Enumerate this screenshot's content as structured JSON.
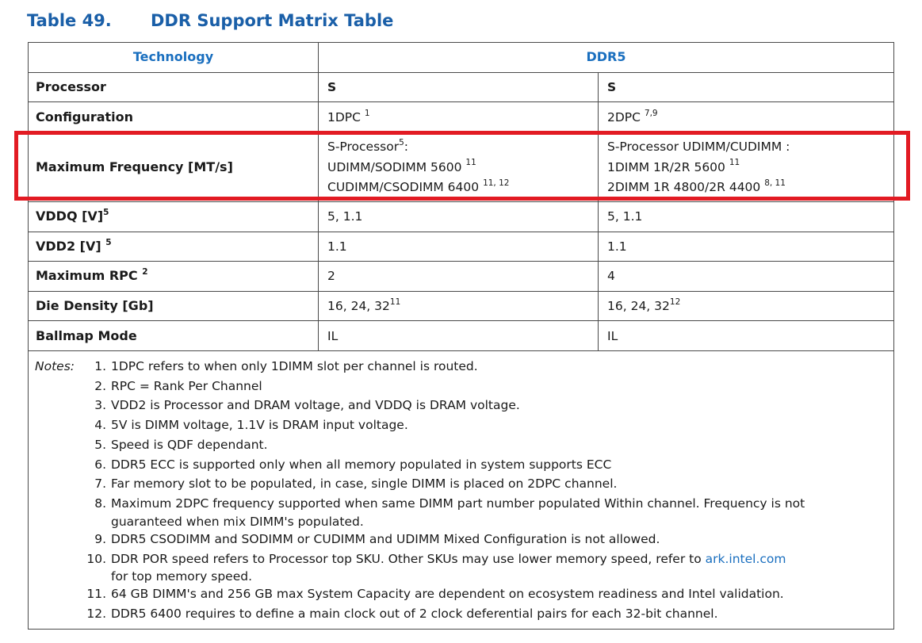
{
  "title": {
    "number": "Table 49.",
    "text": "DDR Support Matrix Table"
  },
  "header": {
    "technology": "Technology",
    "ddr": "DDR5"
  },
  "rows": {
    "processor": {
      "label": "Processor",
      "c1": "S",
      "c2": "S"
    },
    "configuration": {
      "label": "Configuration",
      "c1": "1DPC",
      "c1_sup": "1",
      "c2": "2DPC",
      "c2_sup": "7,9"
    },
    "max_freq": {
      "label": "Maximum Frequency [MT/s]",
      "c1": [
        {
          "text": "S-Processor",
          "sup": "5",
          "after": ":"
        },
        {
          "text": "UDIMM/SODIMM 5600 ",
          "sup": "11"
        },
        {
          "text": "CUDIMM/CSODIMM 6400 ",
          "sup": "11, 12"
        }
      ],
      "c2": [
        {
          "text": "S-Processor UDIMM/CUDIMM :",
          "sup": ""
        },
        {
          "text": "1DIMM 1R/2R 5600 ",
          "sup": "11"
        },
        {
          "text": "2DIMM 1R 4800/2R 4400 ",
          "sup": "8, 11"
        }
      ]
    },
    "vddq": {
      "label": "VDDQ [V]",
      "label_sup": "5",
      "c1": "5, 1.1",
      "c2": "5, 1.1"
    },
    "vdd2": {
      "label": "VDD2 [V] ",
      "label_sup": "5",
      "c1": "1.1",
      "c2": "1.1"
    },
    "max_rpc": {
      "label": "Maximum RPC ",
      "label_sup": "2",
      "c1": "2",
      "c2": "4"
    },
    "die_density": {
      "label": "Die Density [Gb]",
      "c1": "16, 24, 32",
      "c1_sup": "11",
      "c2": "16, 24, 32",
      "c2_sup": "12"
    },
    "ballmap": {
      "label": "Ballmap Mode",
      "c1": "IL",
      "c2": "IL"
    }
  },
  "notes": {
    "label": "Notes:",
    "items": [
      {
        "num": "1.",
        "text": "1DPC refers to when only 1DIMM slot per channel is routed."
      },
      {
        "num": "2.",
        "text": "RPC = Rank Per Channel"
      },
      {
        "num": "3.",
        "text": "VDD2 is Processor and DRAM voltage, and VDDQ is DRAM voltage."
      },
      {
        "num": "4.",
        "text": "5V is DIMM voltage, 1.1V is DRAM input voltage."
      },
      {
        "num": "5.",
        "text": "Speed is QDF dependant."
      },
      {
        "num": "6.",
        "text": "DDR5 ECC is supported only when all memory populated in system supports ECC"
      },
      {
        "num": "7.",
        "text": "Far memory slot to be populated, in case, single DIMM is placed on 2DPC channel."
      },
      {
        "num": "8.",
        "text": "Maximum 2DPC frequency supported when same DIMM part number populated Within channel. Frequency is not",
        "cont": "guaranteed when mix DIMM's populated."
      },
      {
        "num": "9.",
        "text": "DDR5 CSODIMM and SODIMM or CUDIMM and UDIMM Mixed Configuration is not allowed."
      },
      {
        "num": "10.",
        "text": "DDR POR speed refers to Processor top SKU. Other SKUs may use lower memory speed, refer to ",
        "link": "ark.intel.com",
        "cont": "for top memory speed."
      },
      {
        "num": "11.",
        "text": "64 GB DIMM's and 256 GB max System Capacity are dependent on ecosystem readiness and Intel validation."
      },
      {
        "num": "12.",
        "text": "DDR5 6400 requires to define a main clock out of 2 clock deferential pairs for each 32-bit channel."
      }
    ]
  }
}
